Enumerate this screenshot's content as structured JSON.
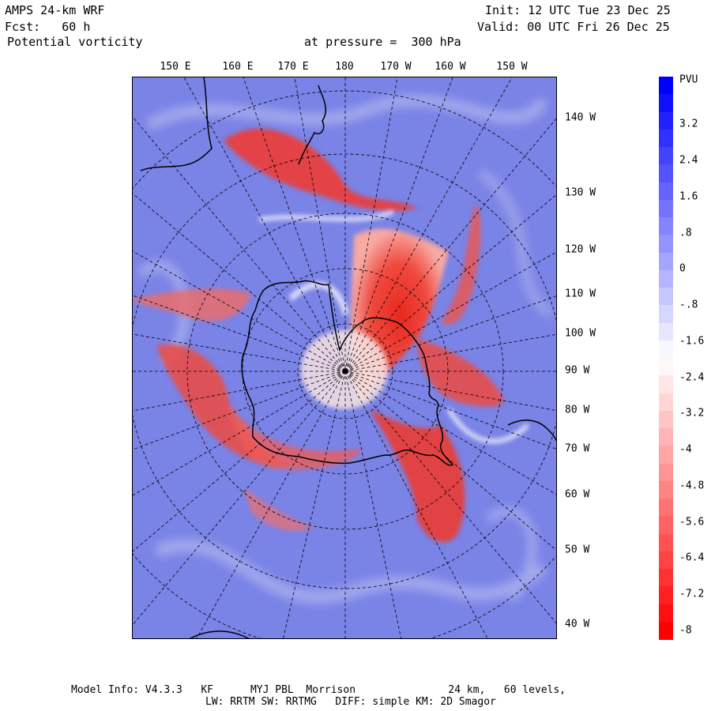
{
  "header": {
    "model": "AMPS 24-km WRF",
    "forecast": "Fcst:   60 h",
    "field": "Potential vorticity",
    "level": "at pressure =  300 hPa",
    "init": "Init: 12 UTC Tue 23 Dec 25",
    "valid": "Valid: 00 UTC Fri 26 Dec 25"
  },
  "map": {
    "projection": "polar stereographic, south pole",
    "top_lon_labels": [
      "150 E",
      "160 E",
      "170 E",
      "180",
      "170 W",
      "160 W",
      "150 W"
    ],
    "right_lon_labels": [
      "140 W",
      "130 W",
      "120 W",
      "110 W",
      "100 W",
      "90 W",
      "80 W",
      "70 W",
      "60 W",
      "50 W",
      "40 W"
    ]
  },
  "colorbar": {
    "unit": "PVU",
    "labels": [
      "3.2",
      "2.4",
      "1.6",
      ".8",
      "0",
      "-.8",
      "-1.6",
      "-2.4",
      "-3.2",
      "-4",
      "-4.8",
      "-5.6",
      "-6.4",
      "-7.2",
      "-8"
    ],
    "min_color": "#ff0000",
    "mid_color": "#ffffff",
    "max_color": "#0000ff"
  },
  "footer": {
    "line1": "Model Info: V4.3.3   KF      MYJ PBL  Morrison               24 km,   60 levels,",
    "line2": "LW: RRTM SW: RRTMG   DIFF: simple KM: 2D Smagor"
  }
}
